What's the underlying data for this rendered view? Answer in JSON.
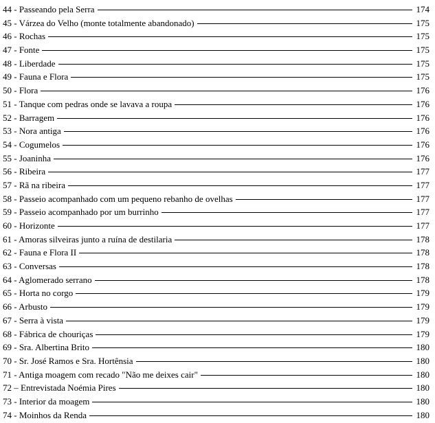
{
  "toc": [
    {
      "label": "44 - Passeando pela Serra",
      "page": "174"
    },
    {
      "label": "45 - Várzea do Velho (monte totalmente abandonado)",
      "page": "175"
    },
    {
      "label": "46 - Rochas",
      "page": "175"
    },
    {
      "label": "47 - Fonte",
      "page": "175"
    },
    {
      "label": "48 - Liberdade",
      "page": "175"
    },
    {
      "label": "49 - Fauna e Flora",
      "page": "175"
    },
    {
      "label": "50 - Flora",
      "page": "176"
    },
    {
      "label": "51 - Tanque com pedras onde se lavava a roupa",
      "page": "176"
    },
    {
      "label": "52 - Barragem",
      "page": "176"
    },
    {
      "label": "53 - Nora antiga",
      "page": "176"
    },
    {
      "label": "54 - Cogumelos",
      "page": "176"
    },
    {
      "label": "55 - Joaninha",
      "page": "176"
    },
    {
      "label": "56 - Ribeira",
      "page": "177"
    },
    {
      "label": "57 - Rã na ribeira",
      "page": "177"
    },
    {
      "label": "58 - Passeio acompanhado com um pequeno rebanho de ovelhas",
      "page": "177"
    },
    {
      "label": "59 - Passeio acompanhado por um burrinho",
      "page": "177"
    },
    {
      "label": "60 - Horizonte",
      "page": "177"
    },
    {
      "label": "61 - Amoras silveiras junto a ruína de destilaria",
      "page": "178"
    },
    {
      "label": "62 - Fauna e Flora II",
      "page": "178"
    },
    {
      "label": "63 - Conversas",
      "page": "178"
    },
    {
      "label": "64 - Aglomerado serrano",
      "page": "178"
    },
    {
      "label": "65 - Horta no corgo",
      "page": "179"
    },
    {
      "label": "66 - Arbusto",
      "page": "179"
    },
    {
      "label": "67 - Serra à vista",
      "page": "179"
    },
    {
      "label": "68 - Fábrica de chouriças",
      "page": "179"
    },
    {
      "label": "69 - Sra. Albertina Brito",
      "page": "180"
    },
    {
      "label": "70 - Sr. José Ramos e Sra. Hortênsia",
      "page": "180"
    },
    {
      "label": "71 - Antiga moagem com recado \"Não me deixes cair\"",
      "page": "180"
    },
    {
      "label": "72 – Entrevistada Noémia Pires",
      "page": "180"
    },
    {
      "label": "73 - Interior da moagem",
      "page": "180"
    },
    {
      "label": "74 - Moinhos da Renda",
      "page": "180"
    }
  ]
}
